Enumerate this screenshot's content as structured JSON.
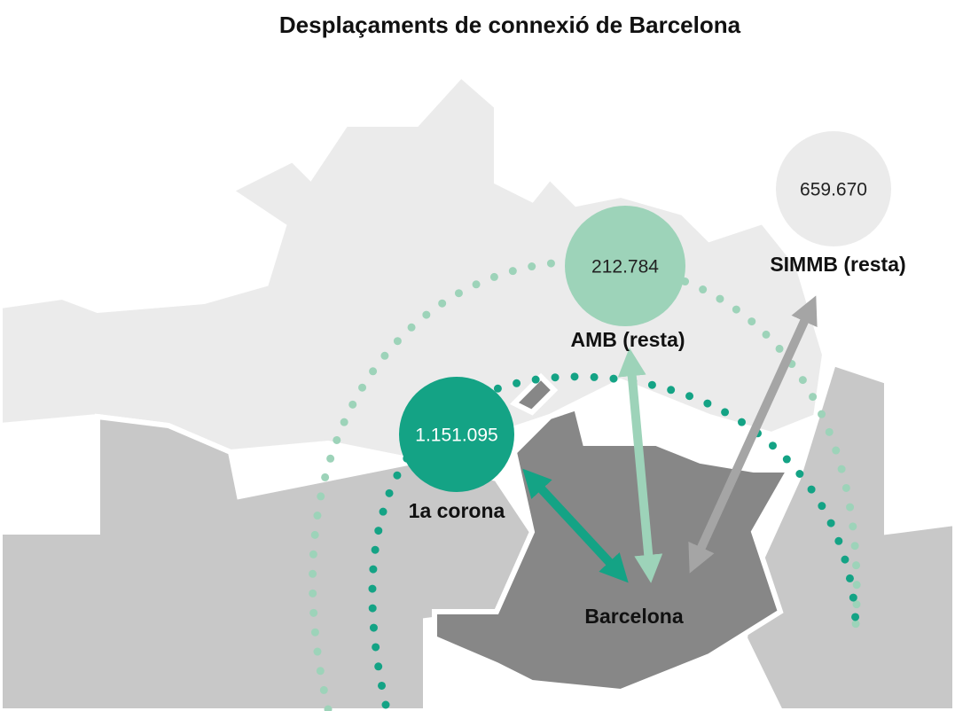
{
  "title": "Desplaçaments de connexió de Barcelona",
  "nodes": [
    {
      "label": "SIMMB (resta)",
      "value": "659.670"
    },
    {
      "label": "AMB (resta)",
      "value": "212.784"
    },
    {
      "label": "1a corona",
      "value": "1.151.095"
    }
  ],
  "center": {
    "label": "Barcelona"
  }
}
